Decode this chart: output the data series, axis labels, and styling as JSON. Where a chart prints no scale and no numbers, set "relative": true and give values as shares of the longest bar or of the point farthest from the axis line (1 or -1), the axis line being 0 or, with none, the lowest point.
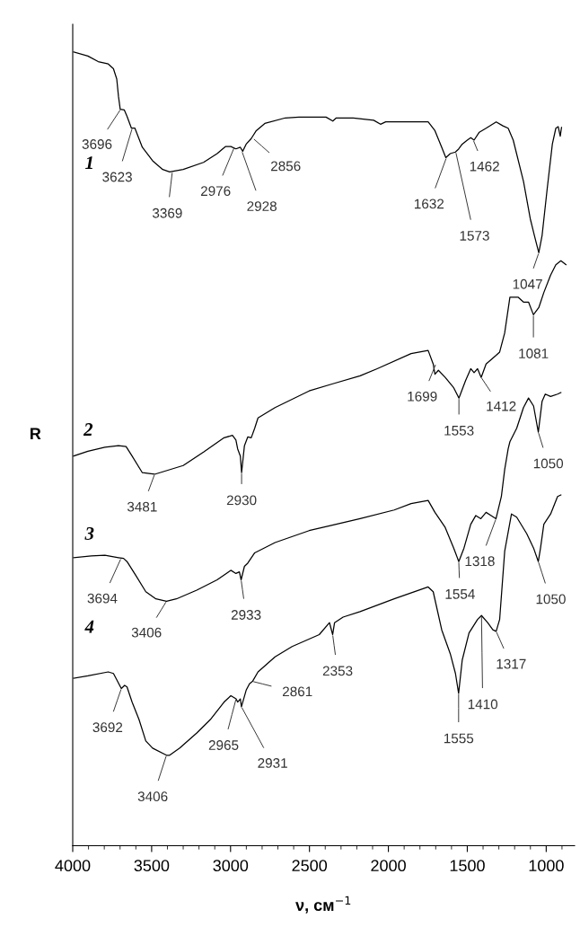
{
  "chart_data": {
    "type": "line",
    "relative": true,
    "xlabel": "ν, см$^{−1}$",
    "ylabel": "R",
    "xlim": [
      4000,
      820
    ],
    "xticks": [
      4000,
      3500,
      3000,
      2500,
      2000,
      1500,
      1000
    ],
    "tick_labels": "x",
    "grid": false,
    "legend": false,
    "marker": "none",
    "line_style": "solid",
    "series": [
      {
        "name": "1",
        "color": "#000000",
        "x": [
          3994,
          3904,
          3839,
          3775,
          3742,
          3721,
          3710,
          3699,
          3673,
          3656,
          3628,
          3606,
          3559,
          3494,
          3430,
          3386,
          3300,
          3171,
          3085,
          3031,
          2998,
          2966,
          2938,
          2923,
          2901,
          2869,
          2837,
          2783,
          2653,
          2567,
          2395,
          2352,
          2330,
          2222,
          2093,
          2050,
          2017,
          1748,
          1705,
          1662,
          1636,
          1608,
          1575,
          1554,
          1532,
          1500,
          1478,
          1457,
          1424,
          1381,
          1317,
          1274,
          1241,
          1209,
          1144,
          1101,
          1075,
          1047,
          1026,
          993,
          961,
          939,
          924,
          911,
          903
        ],
        "values": [
          1.0,
          0.995,
          0.988,
          0.985,
          0.979,
          0.966,
          0.944,
          0.928,
          0.927,
          0.919,
          0.904,
          0.904,
          0.88,
          0.863,
          0.852,
          0.849,
          0.852,
          0.861,
          0.872,
          0.881,
          0.881,
          0.878,
          0.88,
          0.875,
          0.884,
          0.891,
          0.901,
          0.91,
          0.917,
          0.918,
          0.918,
          0.913,
          0.917,
          0.917,
          0.914,
          0.909,
          0.912,
          0.912,
          0.901,
          0.88,
          0.867,
          0.872,
          0.874,
          0.878,
          0.884,
          0.889,
          0.892,
          0.889,
          0.899,
          0.904,
          0.912,
          0.907,
          0.904,
          0.889,
          0.837,
          0.79,
          0.769,
          0.747,
          0.769,
          0.829,
          0.884,
          0.904,
          0.906,
          0.894,
          0.905
        ]
      },
      {
        "name": "2",
        "color": "#000000",
        "x": [
          3994,
          3904,
          3796,
          3710,
          3662,
          3624,
          3559,
          3516,
          3481,
          3300,
          3171,
          3041,
          2988,
          2966,
          2955,
          2938,
          2930,
          2912,
          2891,
          2869,
          2847,
          2826,
          2718,
          2502,
          2352,
          2179,
          2071,
          1856,
          1748,
          1716,
          1705,
          1683,
          1640,
          1586,
          1553,
          1511,
          1478,
          1457,
          1435,
          1412,
          1381,
          1317,
          1295,
          1263,
          1230,
          1177,
          1144,
          1112,
          1081,
          1047,
          1015,
          972,
          939,
          907,
          875
        ],
        "values": [
          0.491,
          0.497,
          0.502,
          0.504,
          0.503,
          0.491,
          0.47,
          0.469,
          0.468,
          0.479,
          0.496,
          0.514,
          0.517,
          0.511,
          0.5,
          0.491,
          0.47,
          0.504,
          0.515,
          0.514,
          0.526,
          0.539,
          0.552,
          0.573,
          0.582,
          0.592,
          0.601,
          0.62,
          0.624,
          0.607,
          0.594,
          0.599,
          0.59,
          0.577,
          0.564,
          0.586,
          0.601,
          0.596,
          0.601,
          0.59,
          0.607,
          0.618,
          0.622,
          0.646,
          0.691,
          0.691,
          0.685,
          0.685,
          0.669,
          0.678,
          0.697,
          0.719,
          0.732,
          0.737,
          0.732
        ]
      },
      {
        "name": "3",
        "color": "#000000",
        "x": [
          3994,
          3882,
          3796,
          3710,
          3678,
          3656,
          3602,
          3537,
          3473,
          3406,
          3343,
          3214,
          3085,
          2998,
          2966,
          2944,
          2933,
          2912,
          2891,
          2847,
          2718,
          2502,
          2373,
          2179,
          1963,
          1856,
          1748,
          1705,
          1640,
          1586,
          1554,
          1521,
          1478,
          1446,
          1414,
          1381,
          1349,
          1318,
          1284,
          1263,
          1241,
          1230,
          1187,
          1144,
          1112,
          1080,
          1050,
          1026,
          1006,
          972,
          928,
          907
        ],
        "values": [
          0.363,
          0.365,
          0.366,
          0.363,
          0.362,
          0.358,
          0.341,
          0.32,
          0.311,
          0.308,
          0.311,
          0.322,
          0.335,
          0.347,
          0.343,
          0.345,
          0.335,
          0.352,
          0.356,
          0.369,
          0.382,
          0.397,
          0.403,
          0.412,
          0.423,
          0.431,
          0.435,
          0.42,
          0.401,
          0.375,
          0.358,
          0.375,
          0.405,
          0.416,
          0.412,
          0.42,
          0.416,
          0.412,
          0.44,
          0.474,
          0.5,
          0.509,
          0.526,
          0.552,
          0.564,
          0.554,
          0.521,
          0.56,
          0.569,
          0.566,
          0.569,
          0.571
        ]
      },
      {
        "name": "4",
        "color": "#000000",
        "x": [
          3994,
          3904,
          3775,
          3742,
          3721,
          3692,
          3671,
          3656,
          3624,
          3580,
          3537,
          3494,
          3406,
          3386,
          3322,
          3214,
          3128,
          3041,
          2998,
          2965,
          2955,
          2938,
          2931,
          2901,
          2880,
          2861,
          2826,
          2718,
          2610,
          2438,
          2373,
          2353,
          2341,
          2287,
          2179,
          1963,
          1748,
          1716,
          1662,
          1608,
          1575,
          1555,
          1532,
          1489,
          1435,
          1410,
          1371,
          1338,
          1317,
          1295,
          1263,
          1220,
          1187,
          1123,
          1080,
          1050,
          1036,
          1015,
          972,
          928,
          907
        ],
        "values": [
          0.211,
          0.214,
          0.219,
          0.217,
          0.209,
          0.198,
          0.202,
          0.2,
          0.181,
          0.159,
          0.132,
          0.123,
          0.114,
          0.114,
          0.123,
          0.142,
          0.159,
          0.181,
          0.189,
          0.185,
          0.181,
          0.185,
          0.175,
          0.196,
          0.204,
          0.207,
          0.219,
          0.238,
          0.251,
          0.266,
          0.281,
          0.266,
          0.281,
          0.288,
          0.295,
          0.311,
          0.326,
          0.32,
          0.272,
          0.242,
          0.217,
          0.192,
          0.234,
          0.268,
          0.285,
          0.29,
          0.281,
          0.272,
          0.27,
          0.285,
          0.371,
          0.418,
          0.414,
          0.393,
          0.375,
          0.358,
          0.375,
          0.405,
          0.418,
          0.44,
          0.442
        ]
      }
    ],
    "annotations": [
      {
        "text": "3696",
        "x": 3696,
        "y": 0.928
      },
      {
        "text": "3623",
        "x": 3623,
        "y": 0.904
      },
      {
        "text": "3369",
        "x": 3369,
        "y": 0.849
      },
      {
        "text": "2976",
        "x": 2976,
        "y": 0.88
      },
      {
        "text": "2928",
        "x": 2928,
        "y": 0.875
      },
      {
        "text": "2856",
        "x": 2856,
        "y": 0.891
      },
      {
        "text": "1632",
        "x": 1632,
        "y": 0.867
      },
      {
        "text": "1573",
        "x": 1573,
        "y": 0.874
      },
      {
        "text": "1462",
        "x": 1462,
        "y": 0.889
      },
      {
        "text": "1047",
        "x": 1047,
        "y": 0.747
      },
      {
        "text": "1699",
        "x": 1699,
        "y": 0.607
      },
      {
        "text": "1553",
        "x": 1553,
        "y": 0.564
      },
      {
        "text": "1412",
        "x": 1412,
        "y": 0.59
      },
      {
        "text": "1081",
        "x": 1081,
        "y": 0.669
      },
      {
        "text": "3481",
        "x": 3481,
        "y": 0.468
      },
      {
        "text": "2930",
        "x": 2930,
        "y": 0.47
      },
      {
        "text": "1050",
        "x": 1050,
        "y": 0.521
      },
      {
        "text": "3694",
        "x": 3694,
        "y": 0.362
      },
      {
        "text": "3406",
        "x": 3406,
        "y": 0.308
      },
      {
        "text": "2933",
        "x": 2933,
        "y": 0.335
      },
      {
        "text": "1554",
        "x": 1554,
        "y": 0.358
      },
      {
        "text": "1318",
        "x": 1318,
        "y": 0.412
      },
      {
        "text": "1050",
        "x": 1050,
        "y": 0.358
      },
      {
        "text": "2353",
        "x": 2353,
        "y": 0.266
      },
      {
        "text": "1317",
        "x": 1317,
        "y": 0.27
      },
      {
        "text": "1410",
        "x": 1410,
        "y": 0.29
      },
      {
        "text": "1555",
        "x": 1555,
        "y": 0.192
      },
      {
        "text": "3692",
        "x": 3692,
        "y": 0.198
      },
      {
        "text": "3406",
        "x": 3406,
        "y": 0.114
      },
      {
        "text": "2965",
        "x": 2965,
        "y": 0.185
      },
      {
        "text": "2931",
        "x": 2931,
        "y": 0.175
      },
      {
        "text": "2861",
        "x": 2861,
        "y": 0.207
      }
    ]
  }
}
